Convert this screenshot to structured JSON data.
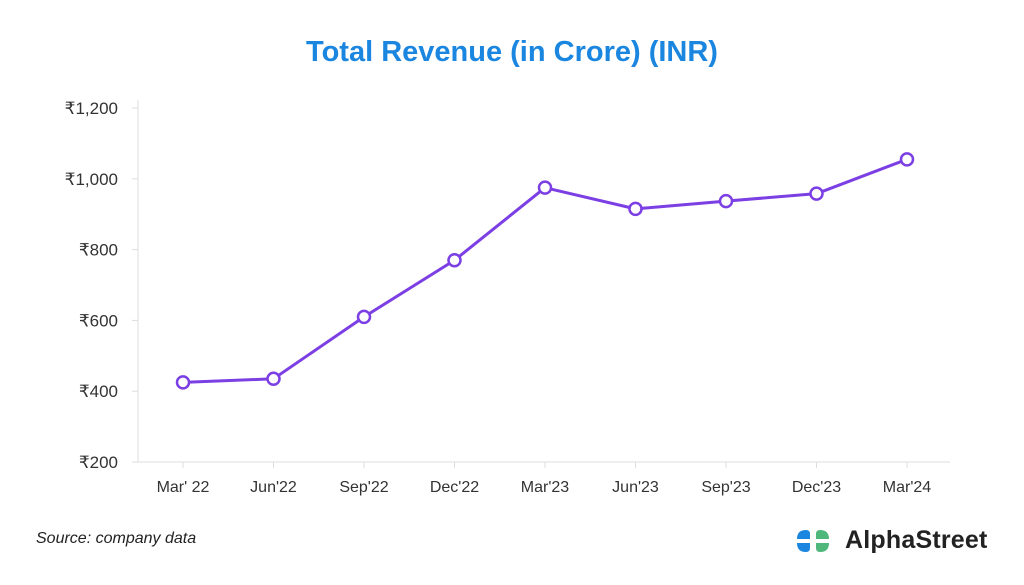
{
  "chart_data": {
    "type": "line",
    "title": "Total Revenue (in Crore) (INR)",
    "xlabel": "",
    "ylabel": "",
    "categories": [
      "Mar' 22",
      "Jun'22",
      "Sep'22",
      "Dec'22",
      "Mar'23",
      "Jun'23",
      "Sep'23",
      "Dec'23",
      "Mar'24"
    ],
    "series": [
      {
        "name": "Total Revenue",
        "values": [
          425,
          435,
          610,
          770,
          975,
          915,
          937,
          958,
          1055
        ],
        "color": "#7b3fe4"
      }
    ],
    "ylim": [
      200,
      1200
    ],
    "yticks": [
      200,
      400,
      600,
      800,
      1000,
      1200
    ],
    "ytick_labels": [
      "₹200",
      "₹400",
      "₹600",
      "₹800",
      "₹1,000",
      "₹1,200"
    ],
    "grid": false
  },
  "footer": {
    "source": "Source: company data",
    "brand": "AlphaStreet"
  },
  "colors": {
    "title": "#1a86e0",
    "line": "#7b3fe4",
    "logo_blue": "#1a86e0",
    "logo_green": "#4db87a"
  }
}
